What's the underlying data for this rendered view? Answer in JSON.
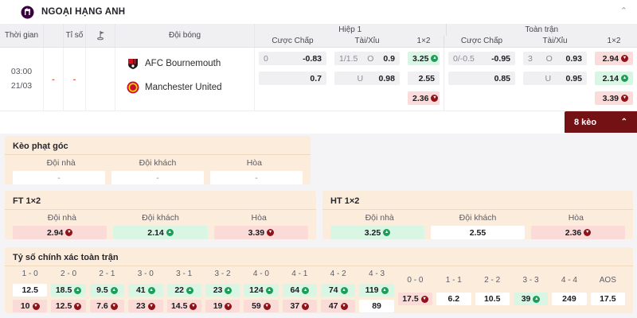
{
  "league": {
    "name": "NGOẠI HẠNG ANH"
  },
  "table": {
    "headers": {
      "time": "Thời gian",
      "score": "Tỉ số",
      "team": "Đội bóng",
      "half1": "Hiệp 1",
      "full": "Toàn trận",
      "handicap": "Cược Chấp",
      "ou": "Tài/Xỉu",
      "onextwo": "1×2"
    },
    "match": {
      "time": "03:00",
      "date": "21/03",
      "score_home": "-",
      "score_away": "-",
      "teams": [
        "AFC Bournemouth",
        "Manchester United"
      ],
      "h1": {
        "handicap": [
          {
            "label": "0",
            "value": "-0.83"
          },
          {
            "label": "",
            "value": "0.7"
          }
        ],
        "ou": [
          {
            "label": "1/1.5",
            "side": "O",
            "value": "0.9"
          },
          {
            "label": "",
            "side": "U",
            "value": "0.98"
          }
        ],
        "x2": [
          {
            "value": "3.25",
            "trend": "up"
          },
          {
            "value": "2.55",
            "trend": ""
          },
          {
            "value": "2.36",
            "trend": "down"
          }
        ]
      },
      "ft": {
        "handicap": [
          {
            "label": "0/-0.5",
            "value": "-0.95"
          },
          {
            "label": "",
            "value": "0.85"
          }
        ],
        "ou": [
          {
            "label": "3",
            "side": "O",
            "value": "0.93"
          },
          {
            "label": "",
            "side": "U",
            "value": "0.95"
          }
        ],
        "x2": [
          {
            "value": "2.94",
            "trend": "down"
          },
          {
            "value": "2.14",
            "trend": "up"
          },
          {
            "value": "3.39",
            "trend": "down"
          }
        ]
      }
    }
  },
  "keo_button": {
    "label": "8 kèo"
  },
  "panels": {
    "corner": {
      "title": "Kèo phạt góc",
      "cols": [
        "Đội nhà",
        "Đội khách",
        "Hòa"
      ],
      "values": [
        {
          "value": "-",
          "trend": "plain"
        },
        {
          "value": "-",
          "trend": "plain"
        },
        {
          "value": "-",
          "trend": "plain"
        }
      ]
    },
    "ft1x2": {
      "title": "FT 1×2",
      "cols": [
        "Đội nhà",
        "Đội khách",
        "Hòa"
      ],
      "values": [
        {
          "value": "2.94",
          "trend": "down"
        },
        {
          "value": "2.14",
          "trend": "up"
        },
        {
          "value": "3.39",
          "trend": "down"
        }
      ]
    },
    "ht1x2": {
      "title": "HT 1×2",
      "cols": [
        "Đội nhà",
        "Đội khách",
        "Hòa"
      ],
      "values": [
        {
          "value": "3.25",
          "trend": "up"
        },
        {
          "value": "2.55",
          "trend": ""
        },
        {
          "value": "2.36",
          "trend": "down"
        }
      ]
    },
    "correct_score": {
      "title": "Tỷ số chính xác toàn trận",
      "pairs": [
        {
          "label": "1 - 0",
          "top": {
            "value": "12.5",
            "trend": ""
          },
          "bottom": {
            "value": "10",
            "trend": "down"
          }
        },
        {
          "label": "2 - 0",
          "top": {
            "value": "18.5",
            "trend": "up"
          },
          "bottom": {
            "value": "12.5",
            "trend": "down"
          }
        },
        {
          "label": "2 - 1",
          "top": {
            "value": "9.5",
            "trend": "up"
          },
          "bottom": {
            "value": "7.6",
            "trend": "down"
          }
        },
        {
          "label": "3 - 0",
          "top": {
            "value": "41",
            "trend": "up"
          },
          "bottom": {
            "value": "23",
            "trend": "down"
          }
        },
        {
          "label": "3 - 1",
          "top": {
            "value": "22",
            "trend": "up"
          },
          "bottom": {
            "value": "14.5",
            "trend": "down"
          }
        },
        {
          "label": "3 - 2",
          "top": {
            "value": "23",
            "trend": "up"
          },
          "bottom": {
            "value": "19",
            "trend": "down"
          }
        },
        {
          "label": "4 - 0",
          "top": {
            "value": "124",
            "trend": "up"
          },
          "bottom": {
            "value": "59",
            "trend": "down"
          }
        },
        {
          "label": "4 - 1",
          "top": {
            "value": "64",
            "trend": "up"
          },
          "bottom": {
            "value": "37",
            "trend": "down"
          }
        },
        {
          "label": "4 - 2",
          "top": {
            "value": "74",
            "trend": "up"
          },
          "bottom": {
            "value": "47",
            "trend": "down"
          }
        },
        {
          "label": "4 - 3",
          "top": {
            "value": "119",
            "trend": "up"
          },
          "bottom": {
            "value": "89",
            "trend": ""
          }
        }
      ],
      "singles": [
        {
          "label": "0 - 0",
          "value": "17.5",
          "trend": "down"
        },
        {
          "label": "1 - 1",
          "value": "6.2",
          "trend": ""
        },
        {
          "label": "2 - 2",
          "value": "10.5",
          "trend": ""
        },
        {
          "label": "3 - 3",
          "value": "39",
          "trend": "up"
        },
        {
          "label": "4 - 4",
          "value": "249",
          "trend": ""
        },
        {
          "label": "AOS",
          "value": "17.5",
          "trend": ""
        }
      ]
    }
  },
  "colors": {
    "accent_maroon": "#741114",
    "up_green": "#1d9e58",
    "down_red": "#8f1318",
    "cell_up_bg": "#d9f6e5",
    "cell_down_bg": "#fbdbd8",
    "panel_bg": "#fcecdc",
    "pl_purple": "#38003c"
  }
}
